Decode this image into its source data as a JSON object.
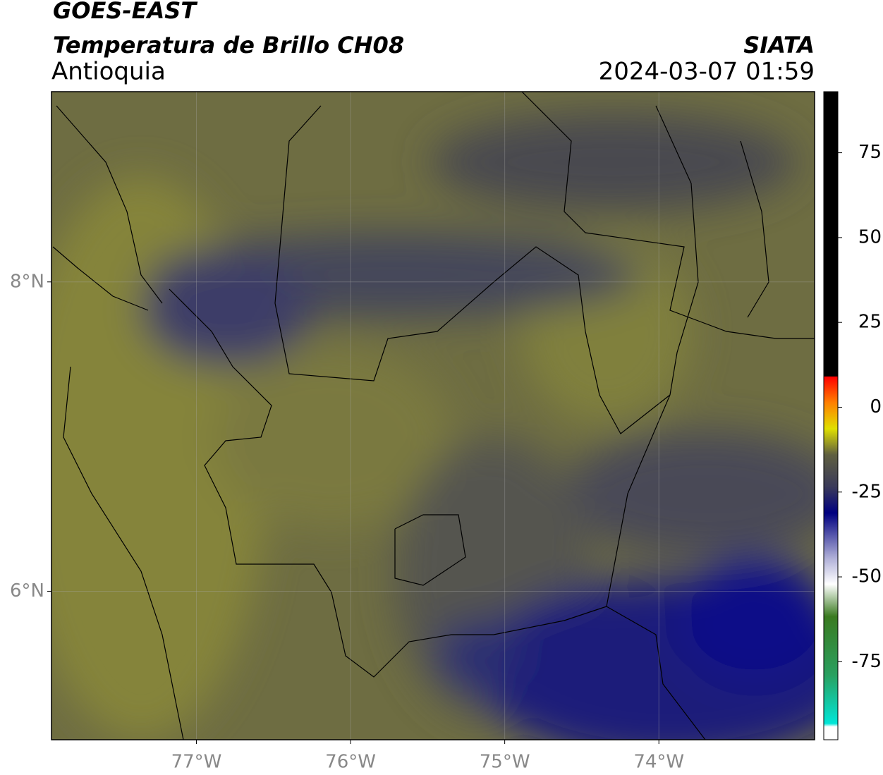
{
  "header": {
    "title": "GOES-EAST",
    "subtitle": "Temperatura de Brillo CH08",
    "region": "Antioquia",
    "source": "SIATA",
    "timestamp": "2024-03-07 01:59"
  },
  "map": {
    "xlim": [
      -77.94,
      -72.99
    ],
    "ylim": [
      5.04,
      9.23
    ],
    "xticks": [
      {
        "value": -77,
        "label": "77°W"
      },
      {
        "value": -76,
        "label": "76°W"
      },
      {
        "value": -75,
        "label": "75°W"
      },
      {
        "value": -74,
        "label": "74°W"
      }
    ],
    "yticks": [
      {
        "value": 6,
        "label": "6°N"
      },
      {
        "value": 8,
        "label": "8°N"
      }
    ],
    "grid": true
  },
  "colorbar": {
    "lim": [
      -98,
      93
    ],
    "ticks": [
      75,
      50,
      25,
      0,
      -25,
      -50,
      -75
    ]
  }
}
